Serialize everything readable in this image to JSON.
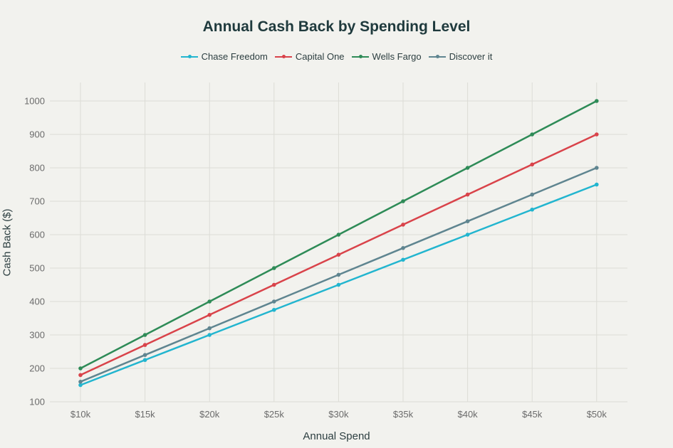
{
  "chart_data": {
    "type": "line",
    "title": "Annual Cash Back by Spending Level",
    "xlabel": "Annual Spend",
    "ylabel": "Cash Back ($)",
    "categories": [
      "$10k",
      "$15k",
      "$20k",
      "$25k",
      "$30k",
      "$35k",
      "$40k",
      "$45k",
      "$50k"
    ],
    "x": [
      10000,
      15000,
      20000,
      25000,
      30000,
      35000,
      40000,
      45000,
      50000
    ],
    "series": [
      {
        "name": "Chase Freedom",
        "color": "#22b5cf",
        "values": [
          150,
          225,
          300,
          375,
          450,
          525,
          600,
          675,
          750
        ]
      },
      {
        "name": "Capital One",
        "color": "#d9434a",
        "values": [
          180,
          270,
          360,
          450,
          540,
          630,
          720,
          810,
          900
        ]
      },
      {
        "name": "Wells Fargo",
        "color": "#2e8b57",
        "values": [
          200,
          300,
          400,
          500,
          600,
          700,
          800,
          900,
          1000
        ]
      },
      {
        "name": "Discover it",
        "color": "#5f8590",
        "values": [
          160,
          240,
          320,
          400,
          480,
          560,
          640,
          720,
          800
        ]
      }
    ],
    "yticks": [
      100,
      200,
      300,
      400,
      500,
      600,
      700,
      800,
      900,
      1000
    ],
    "ylim": [
      100,
      1000
    ],
    "grid": true,
    "legend_position": "top"
  }
}
